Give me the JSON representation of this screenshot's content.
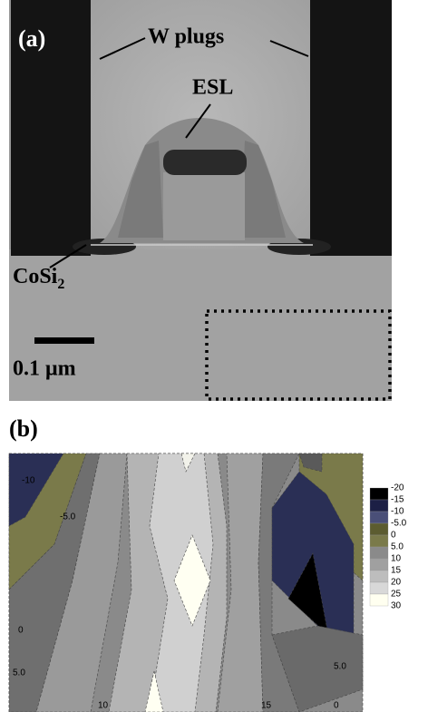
{
  "panel_a": {
    "label": "(a)",
    "w_plugs": "W plugs",
    "esl": "ESL",
    "cosi": "CoSi",
    "cosi_sub": "2",
    "scale": "0.1 μm"
  },
  "panel_b": {
    "label": "(b)",
    "contour_labels": [
      "-10",
      "-5.0",
      "0",
      "5.0",
      "10",
      "15",
      "5.0",
      "0"
    ],
    "legend": [
      "-20",
      "-15",
      "-10",
      "-5.0",
      "0",
      "5.0",
      "10",
      "15",
      "20",
      "25",
      "30"
    ]
  }
}
